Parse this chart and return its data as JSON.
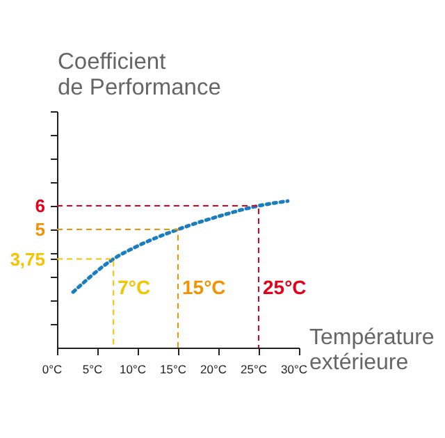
{
  "chart_data": {
    "type": "line",
    "ylabel": "Coefficient\nde Performance",
    "xlabel": "Température\nextérieure",
    "xlim": [
      0,
      30
    ],
    "ylim": [
      0,
      10
    ],
    "xticks": [
      {
        "value": 0,
        "label": "0°C"
      },
      {
        "value": 5,
        "label": "5°C"
      },
      {
        "value": 10,
        "label": "10°C"
      },
      {
        "value": 15,
        "label": "15°C"
      },
      {
        "value": 20,
        "label": "20°C"
      },
      {
        "value": 25,
        "label": "25°C"
      },
      {
        "value": 30,
        "label": "30°C"
      }
    ],
    "yticks": [
      {
        "value": 1,
        "label": null
      },
      {
        "value": 2,
        "label": null
      },
      {
        "value": 3,
        "label": null
      },
      {
        "value": 3.75,
        "label": "3,75"
      },
      {
        "value": 4,
        "label": null
      },
      5,
      6,
      {
        "value": 7,
        "label": null
      },
      {
        "value": 8,
        "label": null
      },
      {
        "value": 9,
        "label": null
      },
      {
        "value": 10,
        "label": null
      }
    ],
    "grid": false,
    "series": [
      {
        "color": "#1a7cc1",
        "line_style": "dotted",
        "x": [
          2,
          7,
          10,
          15,
          20,
          25,
          28.6
        ],
        "values": [
          2.35,
          3.75,
          4.3,
          5,
          5.55,
          6,
          6.2
        ]
      },
      {
        "color": "#f5c400",
        "line_style": "dashed",
        "x": [
          0,
          7,
          7
        ],
        "values": [
          3.75,
          3.75,
          0
        ]
      },
      {
        "color": "#f39200",
        "line_style": "dashed",
        "x": [
          0,
          15,
          15
        ],
        "values": [
          5,
          5,
          0
        ]
      },
      {
        "color": "#e3001b",
        "line_style": "dashed",
        "x": [
          0,
          25,
          25
        ],
        "values": [
          6,
          6,
          0
        ]
      }
    ],
    "annotations": [
      {
        "text": "7°C",
        "x": 7,
        "y": 2.5
      },
      {
        "text": "15°C",
        "x": 15,
        "y": 2.5
      },
      {
        "text": "25°C",
        "x": 25,
        "y": 2.5
      }
    ]
  }
}
